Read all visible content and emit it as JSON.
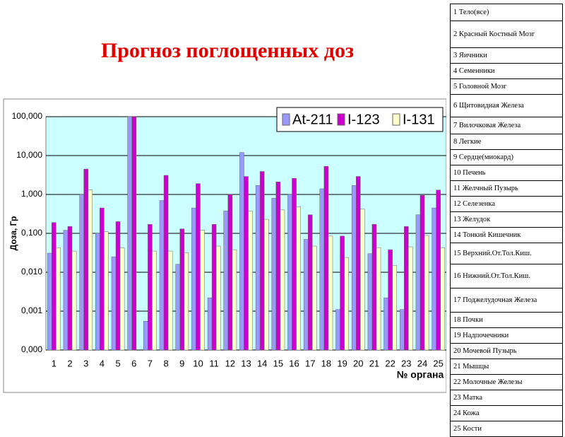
{
  "chart_data": {
    "type": "bar",
    "log_scale": true,
    "grid": true,
    "legend": "upper right",
    "title": "Прогноз поглощенных доз",
    "y_label": "Доза, Гр",
    "x_label": "№ органа",
    "categories": [
      "1",
      "2",
      "3",
      "4",
      "5",
      "6",
      "7",
      "8",
      "9",
      "10",
      "11",
      "12",
      "13",
      "14",
      "15",
      "16",
      "17",
      "18",
      "19",
      "20",
      "21",
      "22",
      "23",
      "24",
      "25"
    ],
    "series": [
      {
        "name": "At-211",
        "color": "#9999ff",
        "values": [
          0.031,
          0.12,
          1.0,
          0.1,
          0.025,
          100,
          0.00055,
          0.7,
          0.016,
          0.45,
          0.0022,
          0.38,
          12,
          1.7,
          0.8,
          1.0,
          0.07,
          1.4,
          0.0011,
          1.7,
          0.03,
          0.0022,
          0.0011,
          0.3,
          0.45
        ]
      },
      {
        "name": "I-123",
        "color": "#cc00cc",
        "values": [
          0.19,
          0.15,
          4.5,
          0.45,
          0.2,
          100,
          0.17,
          3.1,
          0.13,
          1.9,
          0.17,
          1.0,
          2.9,
          3.9,
          2.1,
          2.6,
          0.3,
          5.3,
          0.085,
          2.9,
          0.17,
          0.038,
          0.15,
          0.95,
          1.3
        ]
      },
      {
        "name": "I-131",
        "color": "#ffffcc",
        "values": [
          0.043,
          0.035,
          1.3,
          0.11,
          0.042,
          null,
          0.035,
          0.035,
          0.032,
          0.12,
          0.047,
          0.038,
          0.37,
          0.23,
          0.4,
          0.48,
          0.047,
          0.085,
          0.024,
          0.42,
          0.043,
          0.015,
          0.045,
          0.088,
          0.043
        ]
      }
    ],
    "ylim": [
      0.0001,
      100
    ],
    "yticks": [
      {
        "value": 0.0001,
        "label": "0,000"
      },
      {
        "value": 0.001,
        "label": "0,001"
      },
      {
        "value": 0.01,
        "label": "0,010"
      },
      {
        "value": 0.1,
        "label": "0,100"
      },
      {
        "value": 1,
        "label": "1,000"
      },
      {
        "value": 10,
        "label": "10,000"
      },
      {
        "value": 100,
        "label": "100,000"
      }
    ]
  },
  "table": {
    "rows": [
      "1 Тело(все)",
      "2 Красный Костный Мозг",
      "3 Яичники",
      "4 Семенники",
      "5 Головной Мозг",
      "6 Щитовидная Железа",
      "7 Вилочковая Железа",
      "8 Легкие",
      "9 Сердце(миокард)",
      "10 Печень",
      "11 Желчный Пузырь",
      "12 Селезенка",
      "13 Желудок",
      "14 Тонкий Кишечник",
      "15 Верхний.От.Тол.Киш.",
      "16 Нижний.От.Тол.Киш.",
      "17 Поджелудочная Железа",
      "18 Почки",
      "19 Надпочечники",
      "20 Мочевой Пузырь",
      "21 Мышцы",
      "22 Молочные Железы",
      "23 Матка",
      "24 Кожа",
      "25 Кости"
    ]
  }
}
